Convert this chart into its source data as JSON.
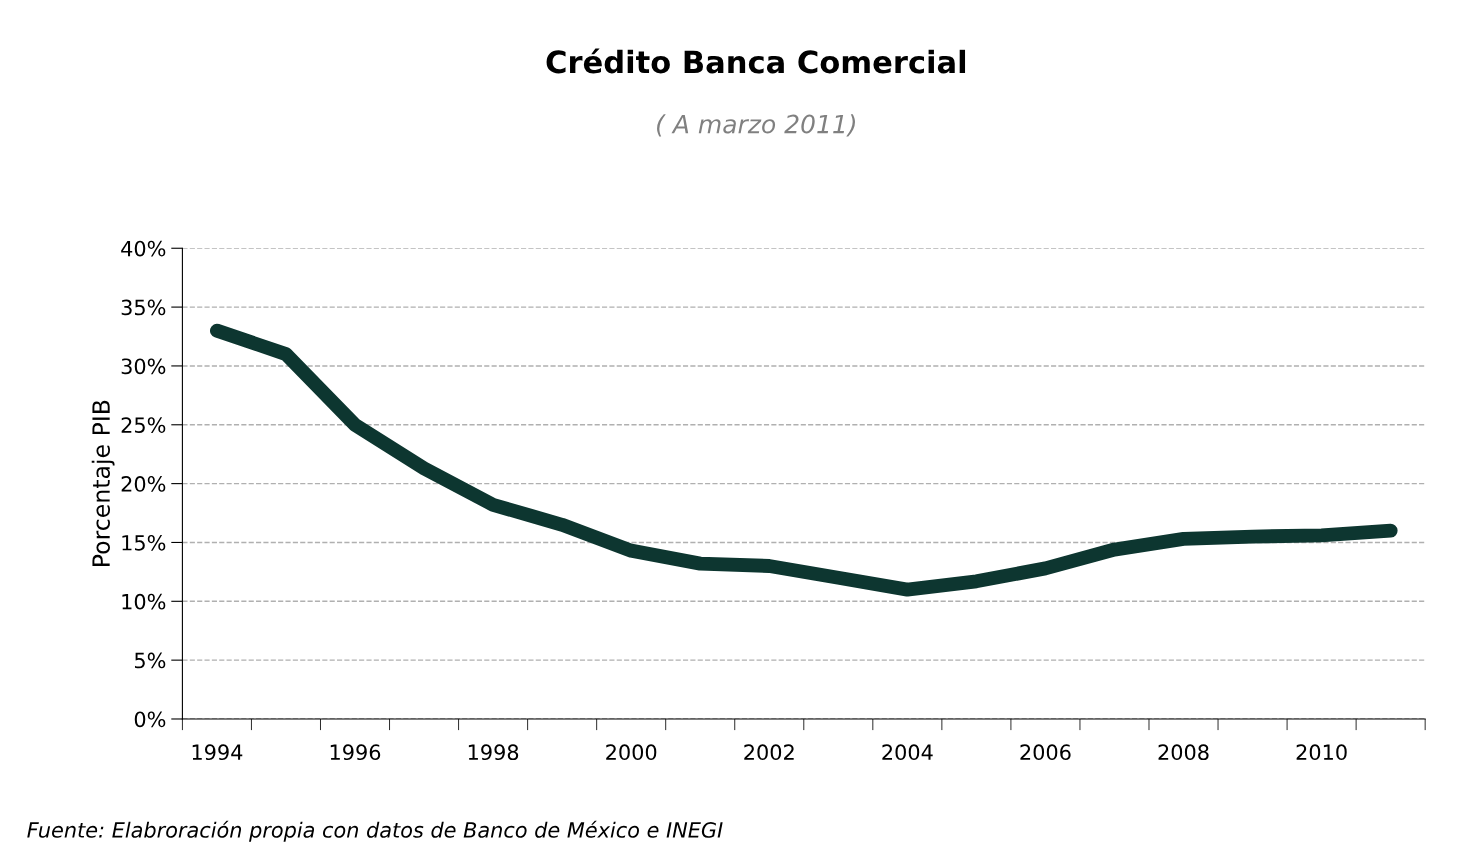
{
  "chart_data": {
    "type": "line",
    "title": "Crédito Banca Comercial",
    "subtitle": "( A marzo 2011)",
    "ylabel": "Porcentaje PIB",
    "categories": [
      "1994",
      null,
      "1996",
      null,
      "1998",
      null,
      "2000",
      null,
      "2002",
      null,
      "2004",
      null,
      "2006",
      null,
      "2008",
      null,
      "2010",
      null
    ],
    "series": [
      {
        "color": "#0d3630",
        "values": [
          33,
          31,
          25,
          21.3,
          18.2,
          16.5,
          14.3,
          13.2,
          13,
          12,
          11,
          11.7,
          12.8,
          14.4,
          15.3,
          15.5,
          15.6,
          16
        ]
      }
    ],
    "ylim": [
      0,
      40
    ],
    "yticks": [
      {
        "value": 0,
        "label": "0%"
      },
      {
        "value": 5,
        "label": "5%"
      },
      {
        "value": 10,
        "label": "10%"
      },
      {
        "value": 15,
        "label": "15%"
      },
      {
        "value": 20,
        "label": "20%"
      },
      {
        "value": 25,
        "label": "25%"
      },
      {
        "value": 30,
        "label": "30%"
      },
      {
        "value": 35,
        "label": "35%"
      },
      {
        "value": 40,
        "label": "40%"
      }
    ],
    "grid": "y",
    "line_style": "solid",
    "annotations": [
      "Fuente: Elabroración propia con datos de Banco de México e INEGI"
    ]
  }
}
